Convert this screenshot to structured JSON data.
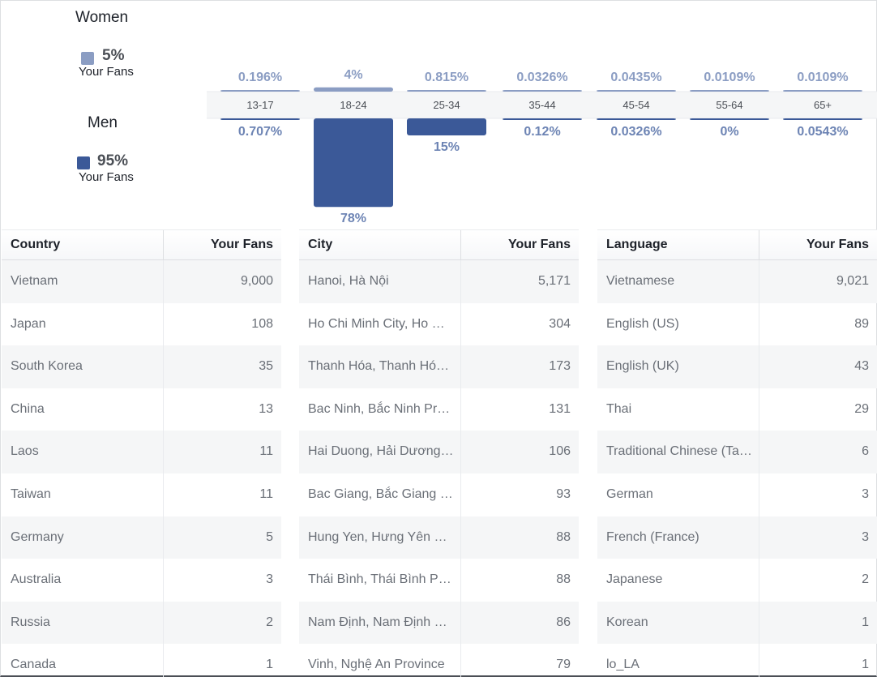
{
  "gender": {
    "women": {
      "title": "Women",
      "percent": "5%",
      "sub": "Your Fans",
      "color": "#8b9dc3"
    },
    "men": {
      "title": "Men",
      "percent": "95%",
      "sub": "Your Fans",
      "color": "#3b5998"
    }
  },
  "chart_data": {
    "type": "bar",
    "categories": [
      "13-17",
      "18-24",
      "25-34",
      "35-44",
      "45-54",
      "55-64",
      "65+"
    ],
    "series": [
      {
        "name": "Women",
        "values": [
          0.196,
          4,
          0.815,
          0.0326,
          0.0435,
          0.0109,
          0.0109
        ],
        "labels": [
          "0.196%",
          "4%",
          "0.815%",
          "0.0326%",
          "0.0435%",
          "0.0109%",
          "0.0109%"
        ],
        "color": "#8b9dc3"
      },
      {
        "name": "Men",
        "values": [
          0.707,
          78,
          15,
          0.12,
          0.0326,
          0,
          0.0543
        ],
        "labels": [
          "0.707%",
          "78%",
          "15%",
          "0.12%",
          "0.0326%",
          "0%",
          "0.0543%"
        ],
        "color": "#3b5998"
      }
    ]
  },
  "tables": [
    {
      "col1": "Country",
      "col2": "Your Fans",
      "rows": [
        [
          "Vietnam",
          "9,000"
        ],
        [
          "Japan",
          "108"
        ],
        [
          "South Korea",
          "35"
        ],
        [
          "China",
          "13"
        ],
        [
          "Laos",
          "11"
        ],
        [
          "Taiwan",
          "11"
        ],
        [
          "Germany",
          "5"
        ],
        [
          "Australia",
          "3"
        ],
        [
          "Russia",
          "2"
        ],
        [
          "Canada",
          "1"
        ]
      ]
    },
    {
      "col1": "City",
      "col2": "Your Fans",
      "rows": [
        [
          "Hanoi, Hà Nội",
          "5,171"
        ],
        [
          "Ho Chi Minh City, Ho C…",
          "304"
        ],
        [
          "Thanh Hóa, Thanh Hó…",
          "173"
        ],
        [
          "Bac Ninh, Bắc Ninh Pr…",
          "131"
        ],
        [
          "Hai Duong, Hải Dương…",
          "106"
        ],
        [
          "Bac Giang, Bắc Giang …",
          "93"
        ],
        [
          "Hung Yen, Hưng Yên P…",
          "88"
        ],
        [
          "Thái Bình, Thái Bình Pr…",
          "88"
        ],
        [
          "Nam Định, Nam Định P…",
          "86"
        ],
        [
          "Vinh, Nghệ An Province",
          "79"
        ]
      ]
    },
    {
      "col1": "Language",
      "col2": "Your Fans",
      "rows": [
        [
          "Vietnamese",
          "9,021"
        ],
        [
          "English (US)",
          "89"
        ],
        [
          "English (UK)",
          "43"
        ],
        [
          "Thai",
          "29"
        ],
        [
          "Traditional Chinese (Ta…",
          "6"
        ],
        [
          "German",
          "3"
        ],
        [
          "French (France)",
          "3"
        ],
        [
          "Japanese",
          "2"
        ],
        [
          "Korean",
          "1"
        ],
        [
          "lo_LA",
          "1"
        ]
      ]
    }
  ]
}
